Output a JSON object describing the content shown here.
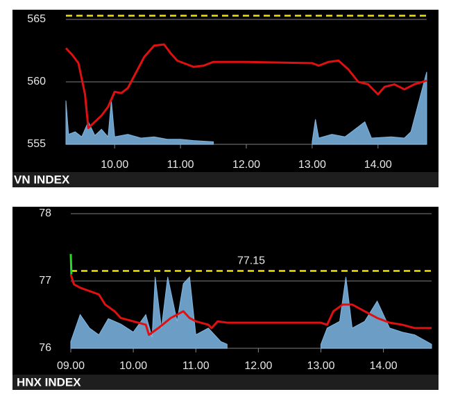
{
  "chart_data": [
    {
      "type": "line",
      "title": "VN INDEX",
      "xlim": [
        9.26,
        14.74
      ],
      "ylim": [
        555,
        565
      ],
      "y2lim": [
        0,
        100
      ],
      "yticks": [
        555,
        560,
        565
      ],
      "xticks": [
        {
          "value": 10,
          "label": "10.00"
        },
        {
          "value": 11,
          "label": "11.00"
        },
        {
          "value": 12,
          "label": "12.00"
        },
        {
          "value": 13,
          "label": "13.00"
        },
        {
          "value": 14,
          "label": "14.00"
        }
      ],
      "grid": true,
      "reference": 565.3,
      "reference_color": "#f2e600",
      "reference_labeled": false,
      "series": [
        {
          "color": "#7fb8e6",
          "axis": "y2",
          "style": "area",
          "x": [
            9.26,
            9.3,
            9.4,
            9.5,
            9.6,
            9.7,
            9.8,
            9.9,
            9.95,
            10.0,
            10.2,
            10.4,
            10.6,
            10.8,
            11.0,
            11.2,
            11.5,
            12.0,
            13.0,
            13.05,
            13.1,
            13.3,
            13.5,
            13.8,
            13.9,
            14.2,
            14.4,
            14.5,
            14.6,
            14.74
          ],
          "values": [
            35,
            8,
            10,
            6,
            18,
            7,
            12,
            6,
            35,
            6,
            8,
            5,
            6,
            4,
            4,
            3,
            2,
            null,
            2,
            20,
            5,
            8,
            6,
            18,
            5,
            6,
            5,
            10,
            30,
            58
          ]
        },
        {
          "color": "#e01010",
          "style": "line",
          "x": [
            9.26,
            9.35,
            9.45,
            9.55,
            9.6,
            9.7,
            9.8,
            9.9,
            10.0,
            10.1,
            10.2,
            10.35,
            10.45,
            10.6,
            10.75,
            10.85,
            10.95,
            11.05,
            11.2,
            11.35,
            11.5,
            12.0,
            13.0,
            13.1,
            13.25,
            13.4,
            13.55,
            13.7,
            13.85,
            14.0,
            14.1,
            14.25,
            14.4,
            14.55,
            14.74
          ],
          "values": [
            562.7,
            562.2,
            561.5,
            559,
            556.3,
            556.8,
            557.3,
            558,
            559.2,
            559.1,
            559.5,
            561,
            562,
            562.9,
            563,
            562.3,
            561.7,
            561.5,
            561.2,
            561.3,
            561.6,
            561.6,
            561.5,
            561.3,
            561.6,
            561.7,
            561,
            560,
            559.8,
            559,
            559.6,
            559.8,
            559.4,
            559.8,
            560.1
          ]
        }
      ]
    },
    {
      "type": "line",
      "title": "HNX INDEX",
      "xlim": [
        9.0,
        14.77
      ],
      "ylim": [
        76,
        78
      ],
      "y2lim": [
        0,
        100
      ],
      "yticks": [
        76,
        77,
        78
      ],
      "xticks": [
        {
          "value": 9,
          "label": "09.00"
        },
        {
          "value": 10,
          "label": "10.00"
        },
        {
          "value": 11,
          "label": "11.00"
        },
        {
          "value": 12,
          "label": "12.00"
        },
        {
          "value": 13,
          "label": "13.00"
        },
        {
          "value": 14,
          "label": "14.00"
        }
      ],
      "grid": true,
      "reference": 77.15,
      "reference_color": "#f2e600",
      "reference_labeled": true,
      "series": [
        {
          "color": "#7fb8e6",
          "axis": "y2",
          "style": "area",
          "x": [
            9.0,
            9.15,
            9.3,
            9.45,
            9.6,
            9.8,
            10.0,
            10.2,
            10.3,
            10.35,
            10.45,
            10.55,
            10.7,
            10.8,
            10.9,
            11.0,
            11.2,
            11.4,
            11.5,
            12.0,
            13.0,
            13.1,
            13.3,
            13.4,
            13.5,
            13.7,
            13.9,
            14.1,
            14.3,
            14.5,
            14.77
          ],
          "values": [
            5,
            25,
            15,
            10,
            22,
            18,
            12,
            25,
            8,
            53,
            15,
            53,
            20,
            48,
            53,
            10,
            15,
            5,
            3,
            null,
            3,
            15,
            20,
            53,
            15,
            20,
            35,
            15,
            12,
            10,
            3
          ]
        },
        {
          "color": "#e01010",
          "style": "line",
          "x": [
            9.0,
            9.05,
            9.15,
            9.3,
            9.45,
            9.55,
            9.7,
            9.8,
            10.0,
            10.2,
            10.25,
            10.4,
            10.6,
            10.8,
            10.9,
            11.0,
            11.2,
            11.25,
            11.35,
            11.5,
            13.0,
            13.1,
            13.2,
            13.35,
            13.5,
            13.7,
            13.9,
            14.1,
            14.3,
            14.5,
            14.77
          ],
          "values": [
            77.1,
            76.95,
            76.9,
            76.85,
            76.8,
            76.65,
            76.55,
            76.45,
            76.4,
            76.35,
            76.2,
            76.3,
            76.45,
            76.55,
            76.45,
            76.4,
            76.35,
            76.3,
            76.4,
            76.38,
            76.38,
            76.35,
            76.55,
            76.65,
            76.65,
            76.55,
            76.45,
            76.38,
            76.35,
            76.3,
            76.3
          ]
        },
        {
          "color": "#22dd22",
          "style": "line",
          "x": [
            9.0,
            9.01
          ],
          "values": [
            77.4,
            77.1
          ]
        }
      ]
    }
  ]
}
